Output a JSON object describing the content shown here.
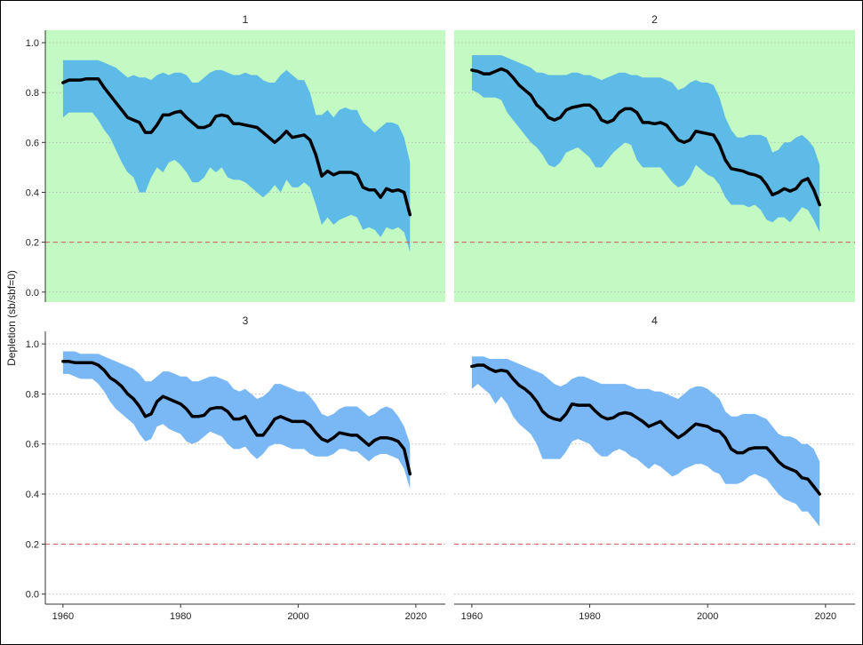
{
  "chart_data": {
    "type": "line",
    "layout": "2x2 facets, shared axes",
    "ylabel": "Depletion (sb/sbf=0)",
    "xlabel": "",
    "xlim": [
      1957,
      2025
    ],
    "ylim": [
      -0.04,
      1.05
    ],
    "x_ticks": [
      1960,
      1980,
      2000,
      2020
    ],
    "y_ticks": [
      0.0,
      0.2,
      0.4,
      0.6,
      0.8,
      1.0
    ],
    "y_tick_labels": [
      "0.0",
      "0.2",
      "0.4",
      "0.6",
      "0.8",
      "1.0"
    ],
    "reference_line": {
      "y": 0.2,
      "style": "dashed",
      "color": "#d9534f"
    },
    "grid": "horizontal dotted",
    "panels": [
      {
        "title": "1",
        "background": "#c3fac3",
        "band_color": "#5ebae6",
        "years": [
          1960,
          1961,
          1962,
          1963,
          1964,
          1965,
          1966,
          1967,
          1968,
          1969,
          1970,
          1971,
          1972,
          1973,
          1974,
          1975,
          1976,
          1977,
          1978,
          1979,
          1980,
          1981,
          1982,
          1983,
          1984,
          1985,
          1986,
          1987,
          1988,
          1989,
          1990,
          1991,
          1992,
          1993,
          1994,
          1995,
          1996,
          1997,
          1998,
          1999,
          2000,
          2001,
          2002,
          2003,
          2004,
          2005,
          2006,
          2007,
          2008,
          2009,
          2010,
          2011,
          2012,
          2013,
          2014,
          2015,
          2016,
          2017,
          2018,
          2019
        ],
        "median": [
          0.84,
          0.85,
          0.85,
          0.85,
          0.855,
          0.855,
          0.855,
          0.82,
          0.79,
          0.76,
          0.73,
          0.7,
          0.69,
          0.68,
          0.64,
          0.64,
          0.67,
          0.71,
          0.71,
          0.72,
          0.725,
          0.7,
          0.68,
          0.66,
          0.66,
          0.67,
          0.705,
          0.71,
          0.705,
          0.675,
          0.675,
          0.67,
          0.665,
          0.66,
          0.64,
          0.62,
          0.6,
          0.62,
          0.645,
          0.62,
          0.625,
          0.63,
          0.61,
          0.55,
          0.465,
          0.485,
          0.47,
          0.48,
          0.48,
          0.48,
          0.47,
          0.42,
          0.41,
          0.41,
          0.38,
          0.415,
          0.405,
          0.41,
          0.4,
          0.31
        ],
        "lower": [
          0.7,
          0.72,
          0.72,
          0.72,
          0.72,
          0.72,
          0.69,
          0.65,
          0.62,
          0.57,
          0.52,
          0.48,
          0.46,
          0.4,
          0.4,
          0.46,
          0.5,
          0.48,
          0.52,
          0.53,
          0.51,
          0.48,
          0.44,
          0.44,
          0.46,
          0.5,
          0.48,
          0.5,
          0.46,
          0.45,
          0.45,
          0.44,
          0.42,
          0.4,
          0.38,
          0.4,
          0.43,
          0.4,
          0.45,
          0.42,
          0.42,
          0.44,
          0.42,
          0.35,
          0.27,
          0.3,
          0.27,
          0.29,
          0.3,
          0.31,
          0.3,
          0.25,
          0.26,
          0.25,
          0.22,
          0.26,
          0.25,
          0.26,
          0.24,
          0.16
        ],
        "upper": [
          0.93,
          0.93,
          0.93,
          0.93,
          0.93,
          0.93,
          0.93,
          0.92,
          0.91,
          0.9,
          0.88,
          0.86,
          0.87,
          0.86,
          0.86,
          0.85,
          0.87,
          0.88,
          0.87,
          0.88,
          0.88,
          0.87,
          0.84,
          0.84,
          0.86,
          0.88,
          0.89,
          0.89,
          0.88,
          0.87,
          0.87,
          0.88,
          0.87,
          0.87,
          0.85,
          0.84,
          0.84,
          0.87,
          0.89,
          0.87,
          0.85,
          0.85,
          0.8,
          0.71,
          0.71,
          0.73,
          0.7,
          0.73,
          0.74,
          0.73,
          0.73,
          0.68,
          0.66,
          0.64,
          0.66,
          0.68,
          0.68,
          0.67,
          0.62,
          0.52
        ]
      },
      {
        "title": "2",
        "background": "#c3fac3",
        "band_color": "#5ebae6",
        "years": [
          1960,
          1961,
          1962,
          1963,
          1964,
          1965,
          1966,
          1967,
          1968,
          1969,
          1970,
          1971,
          1972,
          1973,
          1974,
          1975,
          1976,
          1977,
          1978,
          1979,
          1980,
          1981,
          1982,
          1983,
          1984,
          1985,
          1986,
          1987,
          1988,
          1989,
          1990,
          1991,
          1992,
          1993,
          1994,
          1995,
          1996,
          1997,
          1998,
          1999,
          2000,
          2001,
          2002,
          2003,
          2004,
          2005,
          2006,
          2007,
          2008,
          2009,
          2010,
          2011,
          2012,
          2013,
          2014,
          2015,
          2016,
          2017,
          2018,
          2019
        ],
        "median": [
          0.89,
          0.885,
          0.875,
          0.875,
          0.885,
          0.895,
          0.885,
          0.86,
          0.83,
          0.81,
          0.79,
          0.75,
          0.73,
          0.7,
          0.69,
          0.7,
          0.73,
          0.74,
          0.745,
          0.75,
          0.75,
          0.73,
          0.69,
          0.68,
          0.69,
          0.72,
          0.735,
          0.735,
          0.72,
          0.68,
          0.68,
          0.675,
          0.68,
          0.67,
          0.64,
          0.61,
          0.6,
          0.61,
          0.645,
          0.64,
          0.635,
          0.63,
          0.59,
          0.53,
          0.495,
          0.49,
          0.485,
          0.475,
          0.47,
          0.46,
          0.43,
          0.39,
          0.4,
          0.415,
          0.405,
          0.415,
          0.445,
          0.455,
          0.41,
          0.35
        ],
        "lower": [
          0.81,
          0.8,
          0.78,
          0.78,
          0.78,
          0.77,
          0.72,
          0.69,
          0.66,
          0.63,
          0.6,
          0.58,
          0.55,
          0.51,
          0.5,
          0.52,
          0.56,
          0.57,
          0.58,
          0.56,
          0.54,
          0.5,
          0.5,
          0.53,
          0.56,
          0.58,
          0.6,
          0.59,
          0.53,
          0.5,
          0.5,
          0.5,
          0.5,
          0.47,
          0.44,
          0.42,
          0.43,
          0.46,
          0.51,
          0.49,
          0.47,
          0.46,
          0.43,
          0.38,
          0.35,
          0.35,
          0.35,
          0.34,
          0.35,
          0.33,
          0.29,
          0.28,
          0.3,
          0.3,
          0.28,
          0.31,
          0.34,
          0.33,
          0.29,
          0.24
        ],
        "upper": [
          0.95,
          0.95,
          0.95,
          0.95,
          0.95,
          0.95,
          0.94,
          0.93,
          0.92,
          0.91,
          0.9,
          0.88,
          0.88,
          0.87,
          0.87,
          0.87,
          0.87,
          0.88,
          0.88,
          0.87,
          0.87,
          0.86,
          0.85,
          0.86,
          0.87,
          0.88,
          0.88,
          0.87,
          0.87,
          0.86,
          0.86,
          0.86,
          0.86,
          0.85,
          0.84,
          0.81,
          0.82,
          0.84,
          0.85,
          0.84,
          0.84,
          0.83,
          0.78,
          0.7,
          0.65,
          0.62,
          0.62,
          0.63,
          0.63,
          0.63,
          0.62,
          0.56,
          0.57,
          0.6,
          0.6,
          0.62,
          0.63,
          0.61,
          0.58,
          0.51
        ]
      },
      {
        "title": "3",
        "background": "#ffffff",
        "band_color": "#79b8f5",
        "years": [
          1960,
          1961,
          1962,
          1963,
          1964,
          1965,
          1966,
          1967,
          1968,
          1969,
          1970,
          1971,
          1972,
          1973,
          1974,
          1975,
          1976,
          1977,
          1978,
          1979,
          1980,
          1981,
          1982,
          1983,
          1984,
          1985,
          1986,
          1987,
          1988,
          1989,
          1990,
          1991,
          1992,
          1993,
          1994,
          1995,
          1996,
          1997,
          1998,
          1999,
          2000,
          2001,
          2002,
          2003,
          2004,
          2005,
          2006,
          2007,
          2008,
          2009,
          2010,
          2011,
          2012,
          2013,
          2014,
          2015,
          2016,
          2017,
          2018,
          2019
        ],
        "median": [
          0.93,
          0.93,
          0.925,
          0.925,
          0.925,
          0.925,
          0.915,
          0.895,
          0.865,
          0.85,
          0.83,
          0.8,
          0.78,
          0.75,
          0.71,
          0.72,
          0.77,
          0.79,
          0.78,
          0.77,
          0.76,
          0.74,
          0.71,
          0.71,
          0.715,
          0.74,
          0.745,
          0.745,
          0.73,
          0.7,
          0.7,
          0.71,
          0.67,
          0.635,
          0.635,
          0.665,
          0.7,
          0.71,
          0.7,
          0.69,
          0.69,
          0.69,
          0.675,
          0.645,
          0.62,
          0.61,
          0.625,
          0.645,
          0.64,
          0.635,
          0.635,
          0.615,
          0.595,
          0.615,
          0.625,
          0.625,
          0.62,
          0.61,
          0.58,
          0.48
        ],
        "lower": [
          0.88,
          0.88,
          0.87,
          0.86,
          0.86,
          0.86,
          0.84,
          0.81,
          0.77,
          0.74,
          0.72,
          0.7,
          0.68,
          0.64,
          0.61,
          0.62,
          0.67,
          0.68,
          0.66,
          0.65,
          0.64,
          0.61,
          0.6,
          0.61,
          0.63,
          0.65,
          0.64,
          0.63,
          0.6,
          0.58,
          0.58,
          0.59,
          0.56,
          0.54,
          0.56,
          0.59,
          0.6,
          0.6,
          0.59,
          0.58,
          0.58,
          0.58,
          0.56,
          0.55,
          0.55,
          0.55,
          0.56,
          0.58,
          0.58,
          0.57,
          0.57,
          0.55,
          0.53,
          0.55,
          0.56,
          0.56,
          0.55,
          0.54,
          0.5,
          0.42
        ],
        "upper": [
          0.97,
          0.97,
          0.97,
          0.96,
          0.96,
          0.96,
          0.96,
          0.95,
          0.94,
          0.93,
          0.92,
          0.91,
          0.9,
          0.88,
          0.85,
          0.85,
          0.87,
          0.89,
          0.89,
          0.88,
          0.87,
          0.87,
          0.85,
          0.85,
          0.86,
          0.87,
          0.87,
          0.86,
          0.85,
          0.82,
          0.81,
          0.82,
          0.8,
          0.78,
          0.79,
          0.81,
          0.84,
          0.84,
          0.83,
          0.82,
          0.81,
          0.81,
          0.79,
          0.76,
          0.72,
          0.71,
          0.72,
          0.74,
          0.75,
          0.75,
          0.75,
          0.73,
          0.71,
          0.72,
          0.74,
          0.75,
          0.74,
          0.71,
          0.67,
          0.6
        ]
      },
      {
        "title": "4",
        "background": "#ffffff",
        "band_color": "#79b8f5",
        "years": [
          1960,
          1961,
          1962,
          1963,
          1964,
          1965,
          1966,
          1967,
          1968,
          1969,
          1970,
          1971,
          1972,
          1973,
          1974,
          1975,
          1976,
          1977,
          1978,
          1979,
          1980,
          1981,
          1982,
          1983,
          1984,
          1985,
          1986,
          1987,
          1988,
          1989,
          1990,
          1991,
          1992,
          1993,
          1994,
          1995,
          1996,
          1997,
          1998,
          1999,
          2000,
          2001,
          2002,
          2003,
          2004,
          2005,
          2006,
          2007,
          2008,
          2009,
          2010,
          2011,
          2012,
          2013,
          2014,
          2015,
          2016,
          2017,
          2018,
          2019
        ],
        "median": [
          0.91,
          0.915,
          0.915,
          0.9,
          0.89,
          0.895,
          0.89,
          0.86,
          0.835,
          0.82,
          0.8,
          0.77,
          0.73,
          0.71,
          0.7,
          0.695,
          0.72,
          0.76,
          0.755,
          0.755,
          0.755,
          0.73,
          0.71,
          0.7,
          0.705,
          0.72,
          0.725,
          0.72,
          0.705,
          0.69,
          0.67,
          0.68,
          0.69,
          0.665,
          0.645,
          0.625,
          0.64,
          0.66,
          0.68,
          0.675,
          0.67,
          0.655,
          0.65,
          0.625,
          0.58,
          0.565,
          0.565,
          0.58,
          0.585,
          0.585,
          0.585,
          0.56,
          0.53,
          0.51,
          0.5,
          0.49,
          0.465,
          0.46,
          0.43,
          0.4
        ],
        "lower": [
          0.82,
          0.84,
          0.82,
          0.8,
          0.76,
          0.79,
          0.76,
          0.71,
          0.68,
          0.66,
          0.64,
          0.6,
          0.54,
          0.54,
          0.54,
          0.54,
          0.57,
          0.61,
          0.62,
          0.61,
          0.6,
          0.57,
          0.55,
          0.55,
          0.57,
          0.58,
          0.57,
          0.55,
          0.54,
          0.52,
          0.5,
          0.52,
          0.51,
          0.49,
          0.47,
          0.48,
          0.5,
          0.51,
          0.52,
          0.52,
          0.51,
          0.49,
          0.48,
          0.44,
          0.44,
          0.44,
          0.45,
          0.47,
          0.48,
          0.47,
          0.46,
          0.43,
          0.4,
          0.38,
          0.37,
          0.36,
          0.33,
          0.33,
          0.3,
          0.27
        ],
        "upper": [
          0.95,
          0.95,
          0.95,
          0.94,
          0.94,
          0.94,
          0.94,
          0.93,
          0.92,
          0.91,
          0.9,
          0.89,
          0.88,
          0.86,
          0.84,
          0.83,
          0.84,
          0.86,
          0.87,
          0.87,
          0.86,
          0.85,
          0.84,
          0.84,
          0.84,
          0.84,
          0.84,
          0.83,
          0.82,
          0.82,
          0.82,
          0.81,
          0.81,
          0.8,
          0.79,
          0.78,
          0.8,
          0.82,
          0.83,
          0.83,
          0.82,
          0.8,
          0.78,
          0.73,
          0.71,
          0.71,
          0.72,
          0.72,
          0.72,
          0.71,
          0.7,
          0.67,
          0.64,
          0.63,
          0.63,
          0.62,
          0.6,
          0.6,
          0.58,
          0.53
        ]
      }
    ]
  }
}
